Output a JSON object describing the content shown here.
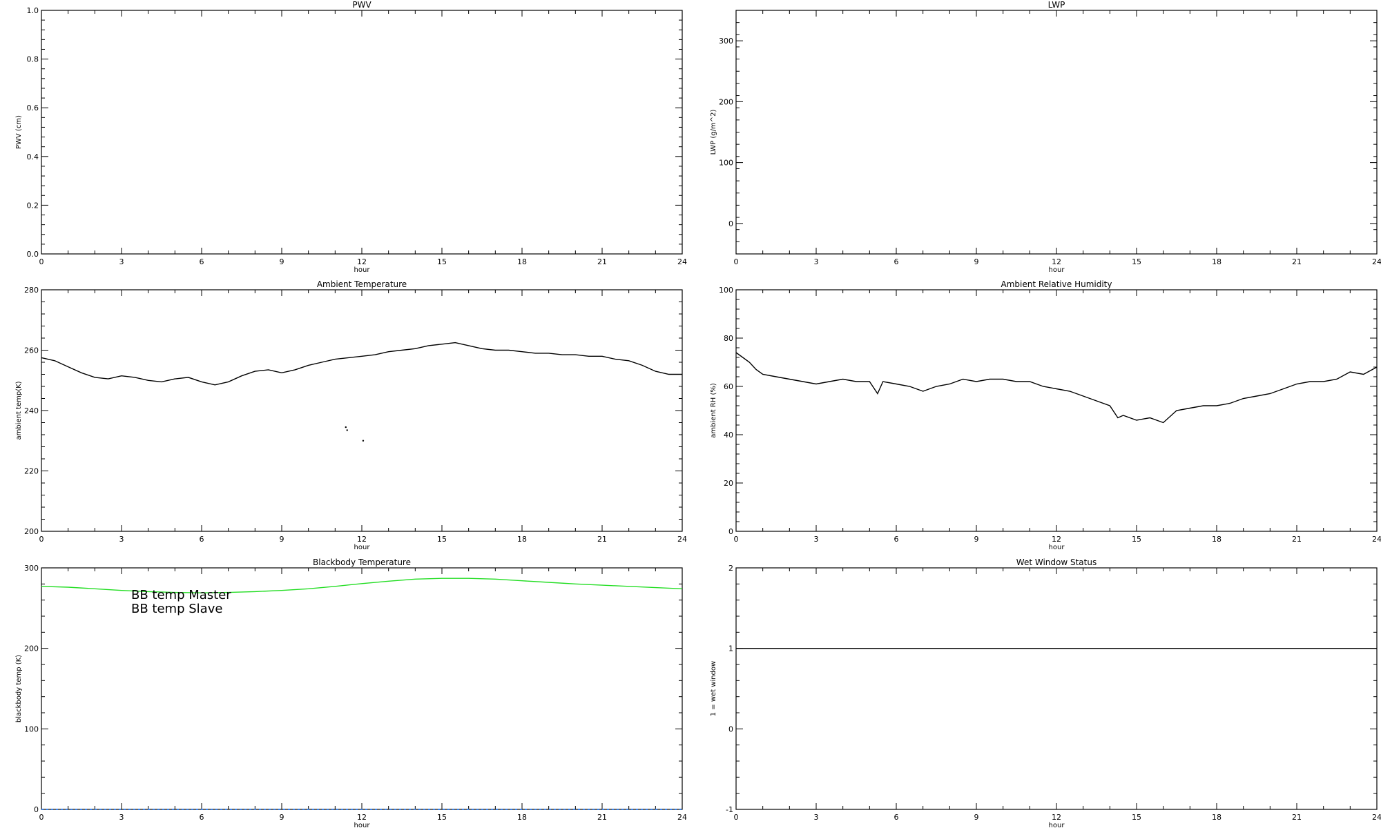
{
  "chart_data": [
    {
      "id": "pwv",
      "type": "line",
      "title": "PWV",
      "xlabel": "hour",
      "ylabel": "PWV (cm)",
      "xlim": [
        0,
        24
      ],
      "ylim": [
        0,
        1.0
      ],
      "xticks": [
        0,
        3,
        6,
        9,
        12,
        15,
        18,
        21,
        24
      ],
      "yticks": [
        0.0,
        0.2,
        0.4,
        0.6,
        0.8,
        1.0
      ],
      "ytick_labels": [
        "0.0",
        "0.2",
        "0.4",
        "0.6",
        "0.8",
        "1.0"
      ],
      "series": []
    },
    {
      "id": "lwp",
      "type": "line",
      "title": "LWP",
      "xlabel": "hour",
      "ylabel": "LWP (g/m^2)",
      "xlim": [
        0,
        24
      ],
      "ylim": [
        -50,
        350
      ],
      "xticks": [
        0,
        3,
        6,
        9,
        12,
        15,
        18,
        21,
        24
      ],
      "yticks": [
        0,
        100,
        200,
        300
      ],
      "ytick_labels": [
        "0",
        "100",
        "200",
        "300"
      ],
      "series": []
    },
    {
      "id": "ambient-temp",
      "type": "line",
      "title": "Ambient Temperature",
      "xlabel": "hour",
      "ylabel": "ambient temp(K)",
      "xlim": [
        0,
        24
      ],
      "ylim": [
        200,
        280
      ],
      "xticks": [
        0,
        3,
        6,
        9,
        12,
        15,
        18,
        21,
        24
      ],
      "yticks": [
        200,
        220,
        240,
        260,
        280
      ],
      "ytick_labels": [
        "200",
        "220",
        "240",
        "260",
        "280"
      ],
      "series": [
        {
          "color": "#000000",
          "x": [
            0,
            0.5,
            1,
            1.5,
            2,
            2.5,
            3,
            3.5,
            4,
            4.5,
            5,
            5.5,
            6,
            6.5,
            7,
            7.5,
            8,
            8.5,
            9,
            9.5,
            10,
            10.5,
            11,
            11.5,
            12,
            12.5,
            13,
            13.5,
            14,
            14.5,
            15,
            15.5,
            16,
            16.5,
            17,
            17.5,
            18,
            18.5,
            19,
            19.5,
            20,
            20.5,
            21,
            21.5,
            22,
            22.5,
            23,
            23.5,
            24
          ],
          "y": [
            257.5,
            256.5,
            254.5,
            252.5,
            251,
            250.5,
            251.5,
            251,
            250,
            249.5,
            250.5,
            251,
            249.5,
            248.5,
            249.5,
            251.5,
            253,
            253.5,
            252.5,
            253.5,
            255,
            256,
            257,
            257.5,
            258,
            258.5,
            259.5,
            260,
            260.5,
            261.5,
            262,
            262.5,
            261.5,
            260.5,
            260,
            260,
            259.5,
            259,
            259,
            258.5,
            258.5,
            258,
            258,
            257,
            256.5,
            255,
            253,
            252,
            252
          ]
        }
      ],
      "extra_points": {
        "x": [
          11.4,
          11.45,
          12.05
        ],
        "y": [
          234.5,
          233.5,
          230
        ]
      }
    },
    {
      "id": "ambient-rh",
      "type": "line",
      "title": "Ambient Relative Humidity",
      "xlabel": "hour",
      "ylabel": "ambient RH (%)",
      "xlim": [
        0,
        24
      ],
      "ylim": [
        0,
        100
      ],
      "xticks": [
        0,
        3,
        6,
        9,
        12,
        15,
        18,
        21,
        24
      ],
      "yticks": [
        0,
        20,
        40,
        60,
        80,
        100
      ],
      "ytick_labels": [
        "0",
        "20",
        "40",
        "60",
        "80",
        "100"
      ],
      "series": [
        {
          "color": "#000000",
          "x": [
            0,
            0.25,
            0.5,
            0.75,
            1,
            1.5,
            2,
            2.5,
            3,
            3.5,
            4,
            4.5,
            5,
            5.3,
            5.5,
            6,
            6.5,
            7,
            7.5,
            8,
            8.5,
            9,
            9.5,
            10,
            10.5,
            11,
            11.5,
            12,
            12.5,
            13,
            13.5,
            14,
            14.3,
            14.5,
            15,
            15.5,
            16,
            16.5,
            17,
            17.5,
            18,
            18.5,
            19,
            19.5,
            20,
            20.5,
            21,
            21.5,
            22,
            22.5,
            23,
            23.5,
            24
          ],
          "y": [
            74,
            72,
            70,
            67,
            65,
            64,
            63,
            62,
            61,
            62,
            63,
            62,
            62,
            57,
            62,
            61,
            60,
            58,
            60,
            61,
            63,
            62,
            63,
            63,
            62,
            62,
            60,
            59,
            58,
            56,
            54,
            52,
            47,
            48,
            46,
            47,
            45,
            50,
            51,
            52,
            52,
            53,
            55,
            56,
            57,
            59,
            61,
            62,
            62,
            63,
            66,
            65,
            68
          ]
        }
      ]
    },
    {
      "id": "blackbody-temp",
      "type": "line",
      "title": "Blackbody Temperature",
      "xlabel": "hour",
      "ylabel": "blackbody temp (K)",
      "xlim": [
        0,
        24
      ],
      "ylim": [
        0,
        300
      ],
      "xticks": [
        0,
        3,
        6,
        9,
        12,
        15,
        18,
        21,
        24
      ],
      "yticks": [
        0,
        100,
        200,
        300
      ],
      "ytick_labels": [
        "0",
        "100",
        "200",
        "300"
      ],
      "legend": {
        "position": "top-left"
      },
      "series": [
        {
          "name": "BB temp Master",
          "color": "#3b82e8",
          "x": [
            0,
            3,
            6,
            9,
            12,
            15,
            18,
            21,
            24
          ],
          "y": [
            0,
            0,
            0,
            0,
            0,
            0,
            0,
            0,
            0
          ]
        },
        {
          "name": "BB temp Slave",
          "color": "#22dd22",
          "x": [
            0,
            1,
            2,
            3,
            4,
            5,
            6,
            7,
            8,
            9,
            10,
            11,
            12,
            13,
            14,
            15,
            16,
            17,
            18,
            19,
            20,
            21,
            22,
            23,
            24
          ],
          "y": [
            277,
            276,
            274,
            272,
            270.5,
            269.5,
            269,
            269.5,
            270.5,
            272,
            274,
            277,
            280.5,
            283.5,
            286,
            287,
            287,
            286,
            284,
            282,
            280,
            278.5,
            277,
            275.5,
            274
          ]
        }
      ]
    },
    {
      "id": "wet-window",
      "type": "line",
      "title": "Wet Window Status",
      "xlabel": "hour",
      "ylabel": "1 = wet window",
      "xlim": [
        0,
        24
      ],
      "ylim": [
        -1,
        2
      ],
      "xticks": [
        0,
        3,
        6,
        9,
        12,
        15,
        18,
        21,
        24
      ],
      "yticks": [
        -1,
        0,
        1,
        2
      ],
      "ytick_labels": [
        "-1",
        "0",
        "1",
        "2"
      ],
      "series": [
        {
          "color": "#000000",
          "x": [
            0,
            24
          ],
          "y": [
            1,
            1
          ]
        }
      ]
    }
  ]
}
